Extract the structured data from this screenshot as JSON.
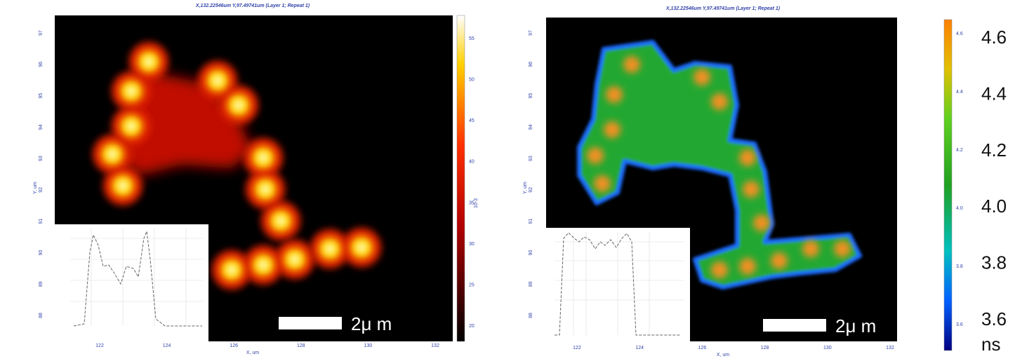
{
  "panels": [
    {
      "title": "X,132.22546um Y,97.49741um (Layer 1; Repeat 1)",
      "x_label": "X, um",
      "y_label": "Y, um",
      "x_ticks": [
        "122",
        "124",
        "126",
        "128",
        "130",
        "132"
      ],
      "y_ticks": [
        "97",
        "96",
        "95",
        "94",
        "93",
        "92",
        "91",
        "90",
        "89",
        "88"
      ],
      "colorbar_ticks": [
        "55",
        "50",
        "45",
        "40",
        "35",
        "30",
        "25",
        "20"
      ],
      "colorbar_unit": "10-3",
      "scale_bar": "2μ m"
    },
    {
      "title": "X,132.22546um Y,97.49741um (Layer 1; Repeat 1)",
      "x_label": "X, um",
      "y_label": "Y, um",
      "x_ticks": [
        "122",
        "124",
        "126",
        "128",
        "130",
        "132"
      ],
      "y_ticks": [
        "97",
        "96",
        "95",
        "94",
        "93",
        "92",
        "91",
        "90",
        "89",
        "88"
      ],
      "colorbar_ticks": [
        "4.6",
        "4.4",
        "4.2",
        "4.0",
        "3.8",
        "3.6"
      ],
      "scale_bar": "2μ m"
    }
  ],
  "lifetime_scale": {
    "ticks": [
      "4.6",
      "4.4",
      "4.2",
      "4.0",
      "3.8",
      "3.6"
    ],
    "unit": "ns"
  }
}
